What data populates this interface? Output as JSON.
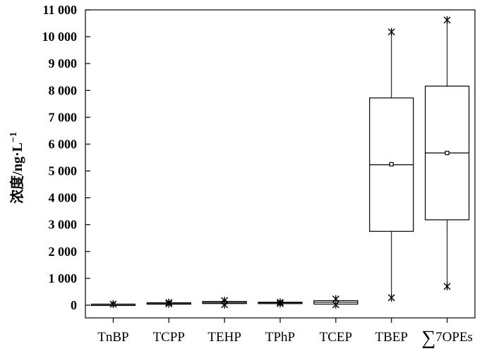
{
  "chart_data": {
    "type": "box",
    "ylabel": "浓度/ng·L",
    "ylabel_exponent": "−1",
    "ylim": [
      0,
      11000
    ],
    "y_ticks": [
      0,
      1000,
      2000,
      3000,
      4000,
      5000,
      6000,
      7000,
      8000,
      9000,
      10000,
      11000
    ],
    "y_tick_labels": [
      "0",
      "1 000",
      "2 000",
      "3 000",
      "4 000",
      "5 000",
      "6 000",
      "7 000",
      "8 000",
      "9 000",
      "10 000",
      "11 000"
    ],
    "categories": [
      "TnBP",
      "TCPP",
      "TEHP",
      "TPhP",
      "TCEP",
      "TBEP",
      "∑7OPEs"
    ],
    "boxes": [
      {
        "label": "TnBP",
        "min": 20,
        "q1": 20,
        "median": 30,
        "mean": 40,
        "q3": 40,
        "max": 50,
        "extremes": [
          40
        ]
      },
      {
        "label": "TCPP",
        "min": 50,
        "q1": 60,
        "median": 75,
        "mean": 80,
        "q3": 90,
        "max": 100,
        "extremes": [
          100,
          50
        ]
      },
      {
        "label": "TEHP",
        "min": 50,
        "q1": 60,
        "median": 100,
        "mean": 100,
        "q3": 140,
        "max": 170,
        "extremes": [
          170,
          20
        ]
      },
      {
        "label": "TPhP",
        "min": 70,
        "q1": 70,
        "median": 90,
        "mean": 90,
        "q3": 110,
        "max": 120,
        "extremes": [
          110,
          60
        ]
      },
      {
        "label": "TCEP",
        "min": 30,
        "q1": 40,
        "median": 110,
        "mean": 110,
        "q3": 170,
        "max": 200,
        "extremes": [
          230,
          20
        ]
      },
      {
        "label": "TBEP",
        "min": 270,
        "q1": 2750,
        "median": 5230,
        "mean": 5250,
        "q3": 7720,
        "max": 10200,
        "extremes": [
          10180,
          280
        ]
      },
      {
        "label": "∑7OPEs",
        "min": 700,
        "q1": 3180,
        "median": 5670,
        "mean": 5670,
        "q3": 8160,
        "max": 10620,
        "extremes": [
          10620,
          700
        ]
      }
    ]
  }
}
